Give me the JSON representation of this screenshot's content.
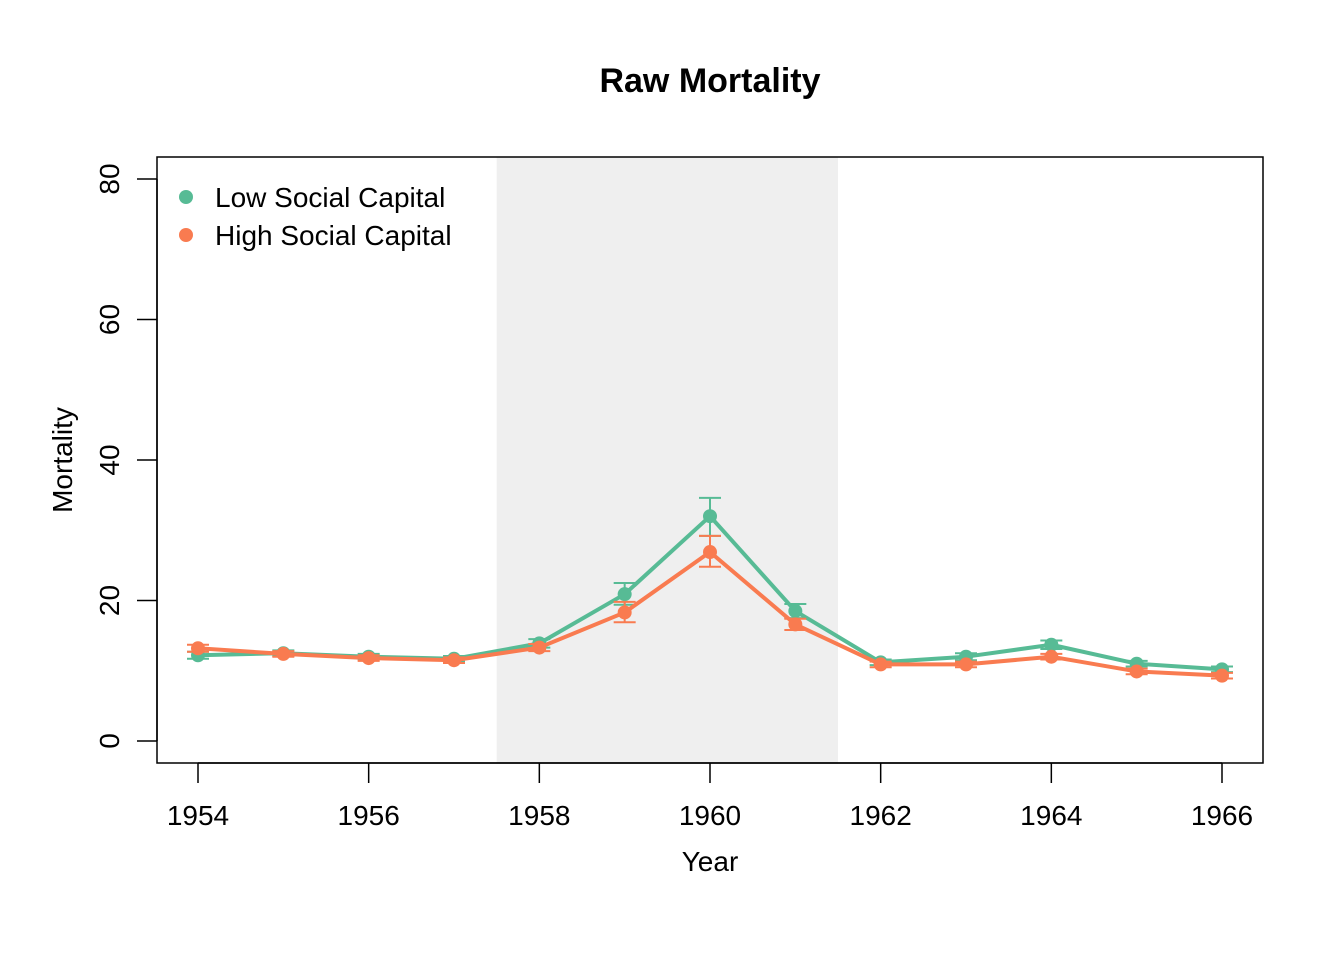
{
  "chart_data": {
    "type": "line",
    "title": "Raw Mortality",
    "xlabel": "Year",
    "ylabel": "Mortality",
    "xlim": [
      1953.65,
      1966.6
    ],
    "ylim": [
      -3,
      83
    ],
    "x_ticks": [
      1954,
      1956,
      1958,
      1960,
      1962,
      1964,
      1966
    ],
    "x_tick_labels": [
      "1954",
      "1956",
      "1958",
      "1960",
      "1962",
      "1964",
      "1966"
    ],
    "y_ticks": [
      0,
      20,
      40,
      60,
      80
    ],
    "y_tick_labels": [
      "0",
      "20",
      "40",
      "60",
      "80"
    ],
    "grid": false,
    "legend_position": "top-left",
    "shaded_region": {
      "x_start": 1957.5,
      "x_end": 1961.5,
      "color": "#EFEFEF"
    },
    "x": [
      1954,
      1955,
      1956,
      1957,
      1958,
      1959,
      1960,
      1961,
      1962,
      1963,
      1964,
      1965,
      1966
    ],
    "series": [
      {
        "name": "Low Social Capital",
        "color": "#57BB95",
        "values": [
          12.2,
          12.5,
          12.0,
          11.7,
          13.9,
          20.9,
          32.0,
          18.5,
          11.2,
          12.0,
          13.7,
          11.0,
          10.2
        ],
        "error_low": [
          11.7,
          12.1,
          11.6,
          11.3,
          13.3,
          19.4,
          29.2,
          17.5,
          10.8,
          11.5,
          13.1,
          10.6,
          9.8
        ],
        "error_high": [
          12.7,
          12.9,
          12.4,
          12.1,
          14.5,
          22.5,
          34.6,
          19.5,
          11.6,
          12.5,
          14.3,
          11.4,
          10.6
        ]
      },
      {
        "name": "High Social Capital",
        "color": "#F97B50",
        "values": [
          13.2,
          12.4,
          11.8,
          11.5,
          13.3,
          18.3,
          26.9,
          16.6,
          10.9,
          10.9,
          12.0,
          9.9,
          9.3
        ],
        "error_low": [
          12.7,
          12.0,
          11.4,
          11.1,
          12.8,
          16.9,
          24.8,
          15.8,
          10.5,
          10.5,
          11.6,
          9.5,
          8.9
        ],
        "error_high": [
          13.7,
          12.8,
          12.2,
          11.9,
          13.8,
          19.8,
          29.2,
          17.4,
          11.3,
          11.3,
          12.4,
          10.3,
          9.7
        ]
      }
    ]
  }
}
